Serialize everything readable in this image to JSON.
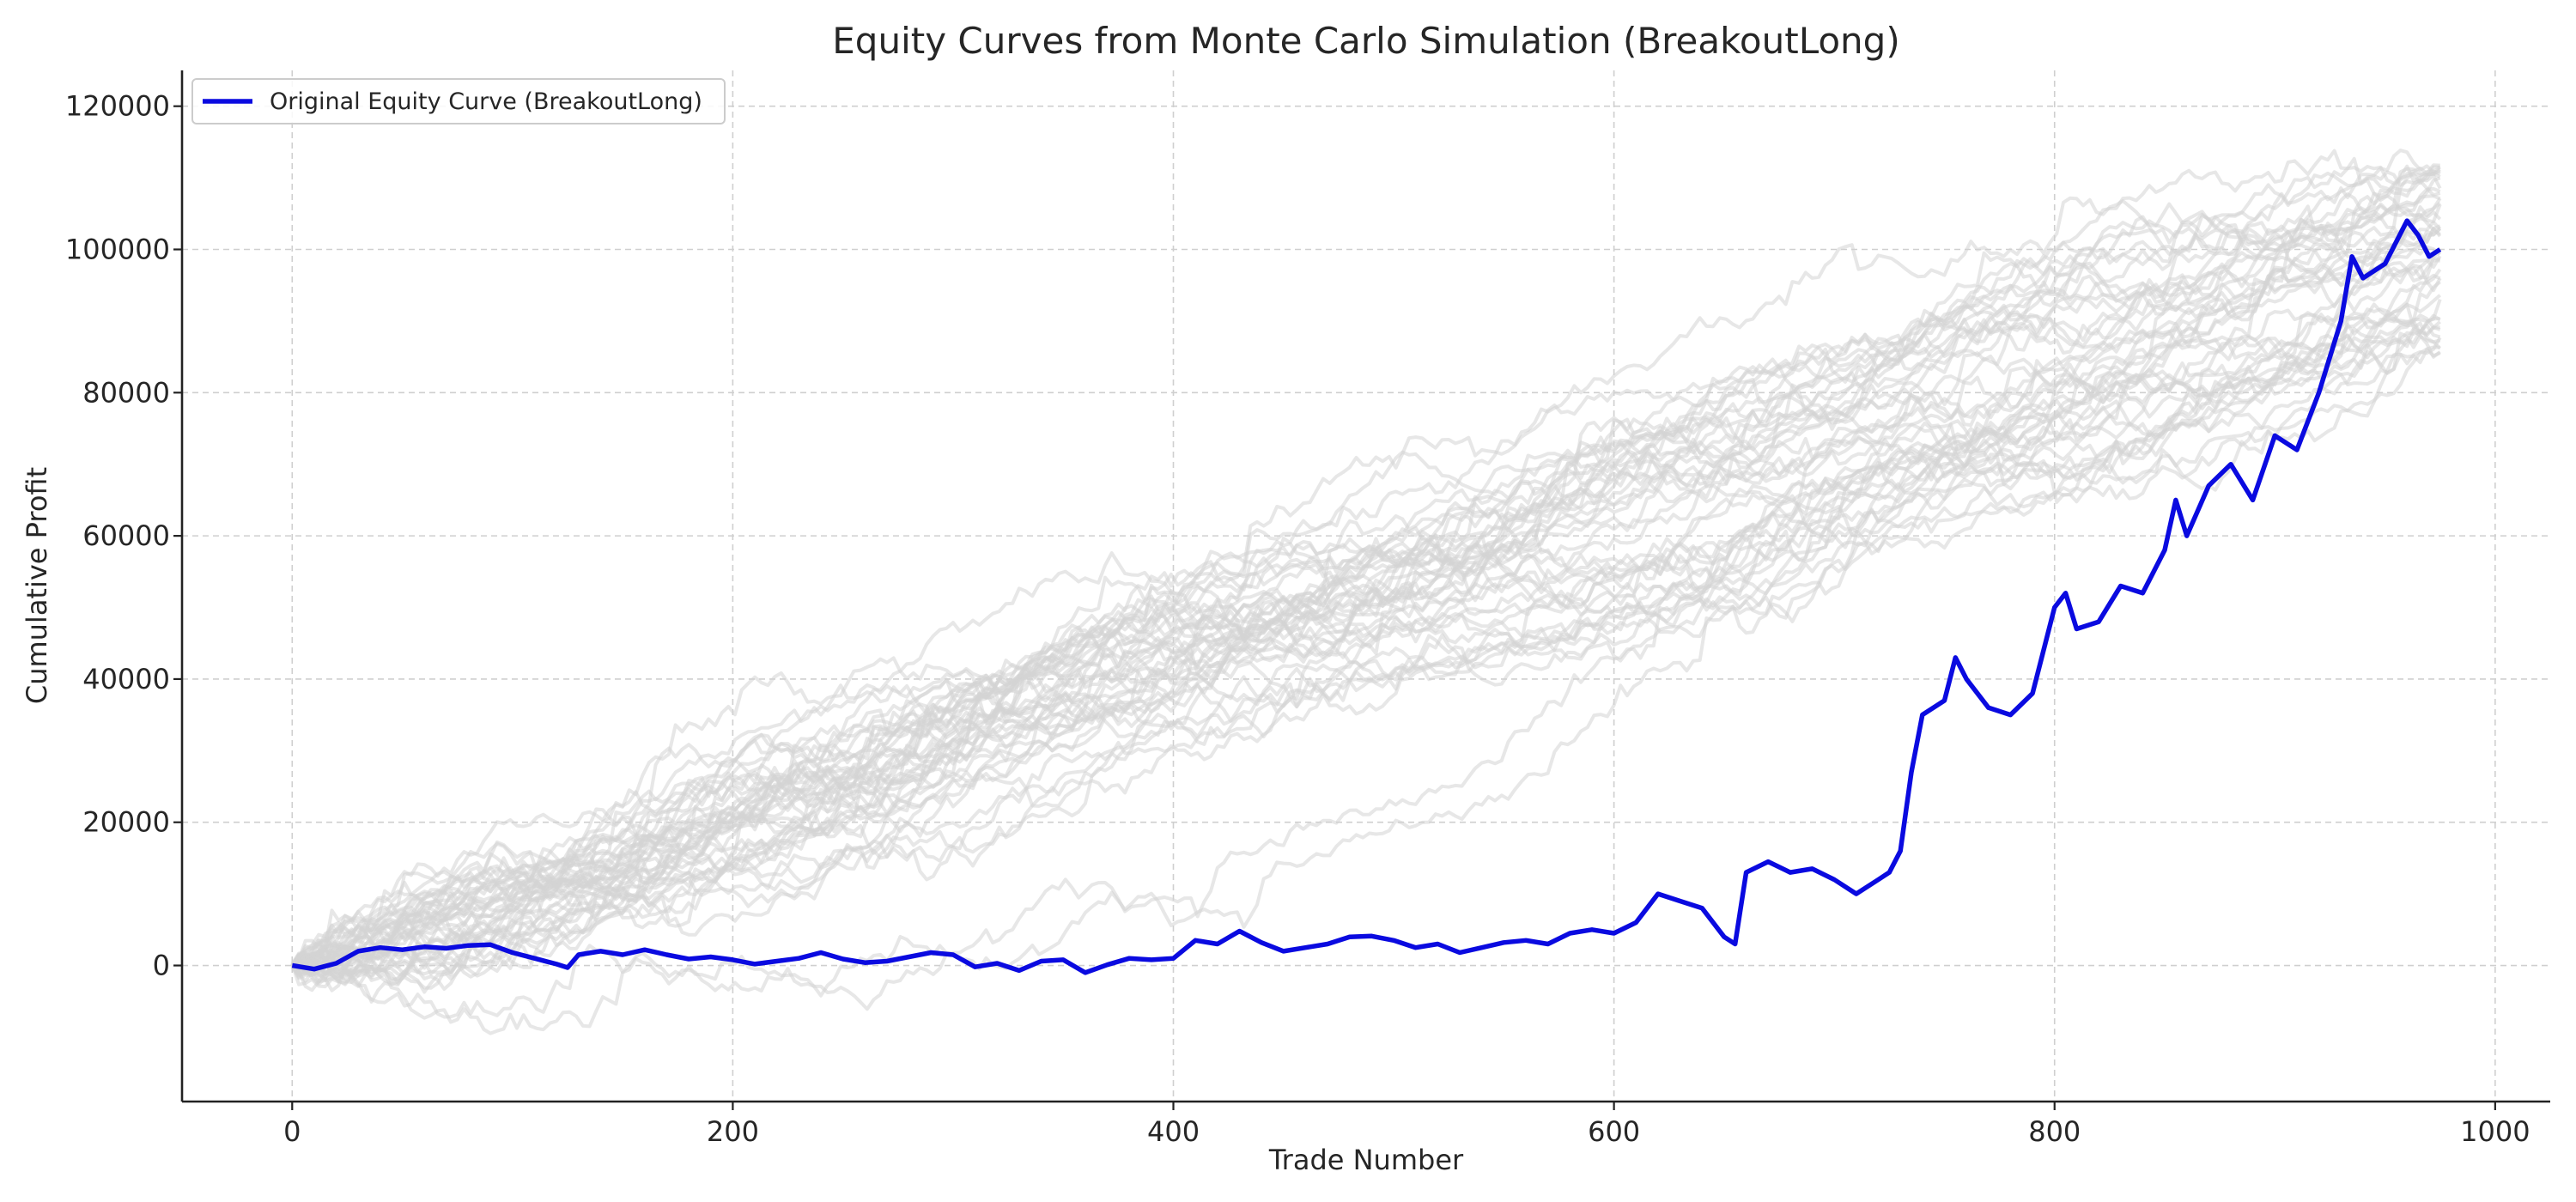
{
  "chart_data": {
    "type": "line",
    "title": "Equity Curves from Monte Carlo Simulation (BreakoutLong)",
    "xlabel": "Trade Number",
    "ylabel": "Cumulative Profit",
    "xlim": [
      -50,
      1025
    ],
    "ylim": [
      -19000,
      125000
    ],
    "xticks": [
      0,
      200,
      400,
      600,
      800,
      1000
    ],
    "yticks": [
      0,
      20000,
      40000,
      60000,
      80000,
      100000,
      120000
    ],
    "grid": true,
    "legend": {
      "placement": "top-left",
      "entries": [
        "Original Equity Curve (BreakoutLong)"
      ]
    },
    "colors": {
      "original": "#0a0ae0",
      "simulations": "#d3d3d3"
    },
    "series": [
      {
        "name": "Original Equity Curve (BreakoutLong)",
        "x": [
          0,
          10,
          20,
          30,
          40,
          50,
          60,
          70,
          80,
          90,
          100,
          110,
          120,
          125,
          130,
          140,
          150,
          160,
          170,
          180,
          190,
          200,
          210,
          220,
          230,
          240,
          250,
          260,
          270,
          280,
          290,
          300,
          310,
          320,
          330,
          340,
          350,
          360,
          370,
          380,
          390,
          400,
          410,
          420,
          430,
          440,
          450,
          460,
          470,
          480,
          490,
          500,
          510,
          520,
          530,
          540,
          550,
          560,
          570,
          580,
          590,
          600,
          610,
          620,
          630,
          640,
          650,
          655,
          660,
          670,
          680,
          690,
          700,
          710,
          720,
          725,
          730,
          735,
          740,
          750,
          755,
          760,
          770,
          780,
          790,
          800,
          805,
          810,
          820,
          830,
          840,
          850,
          855,
          860,
          870,
          880,
          890,
          900,
          910,
          920,
          930,
          935,
          940,
          950,
          960,
          965,
          970,
          975
        ],
        "values": [
          0,
          -500,
          300,
          2000,
          2500,
          2200,
          2600,
          2400,
          2800,
          2900,
          1800,
          1000,
          200,
          -300,
          1500,
          2000,
          1500,
          2200,
          1500,
          900,
          1200,
          800,
          200,
          600,
          1000,
          1800,
          900,
          400,
          600,
          1200,
          1800,
          1500,
          -200,
          300,
          -700,
          600,
          800,
          -1000,
          100,
          1000,
          800,
          1000,
          3500,
          3000,
          4800,
          3200,
          2000,
          2500,
          3000,
          4000,
          4100,
          3500,
          2500,
          3000,
          1800,
          2500,
          3200,
          3500,
          3000,
          4500,
          5000,
          4500,
          6000,
          10000,
          9000,
          8000,
          4000,
          3000,
          13000,
          14500,
          13000,
          13500,
          12000,
          10000,
          12000,
          13000,
          16000,
          27000,
          35000,
          37000,
          43000,
          40000,
          36000,
          35000,
          38000,
          50000,
          52000,
          47000,
          48000,
          53000,
          52000,
          58000,
          65000,
          60000,
          67000,
          70000,
          65000,
          74000,
          72000,
          80000,
          90000,
          99000,
          96000,
          98000,
          104000,
          102000,
          99000,
          100000
        ]
      }
    ],
    "simulations": {
      "count": 45,
      "x_start": 0,
      "x_end": 975,
      "start_value": 0,
      "end_value_range": [
        85000,
        112000
      ]
    }
  }
}
